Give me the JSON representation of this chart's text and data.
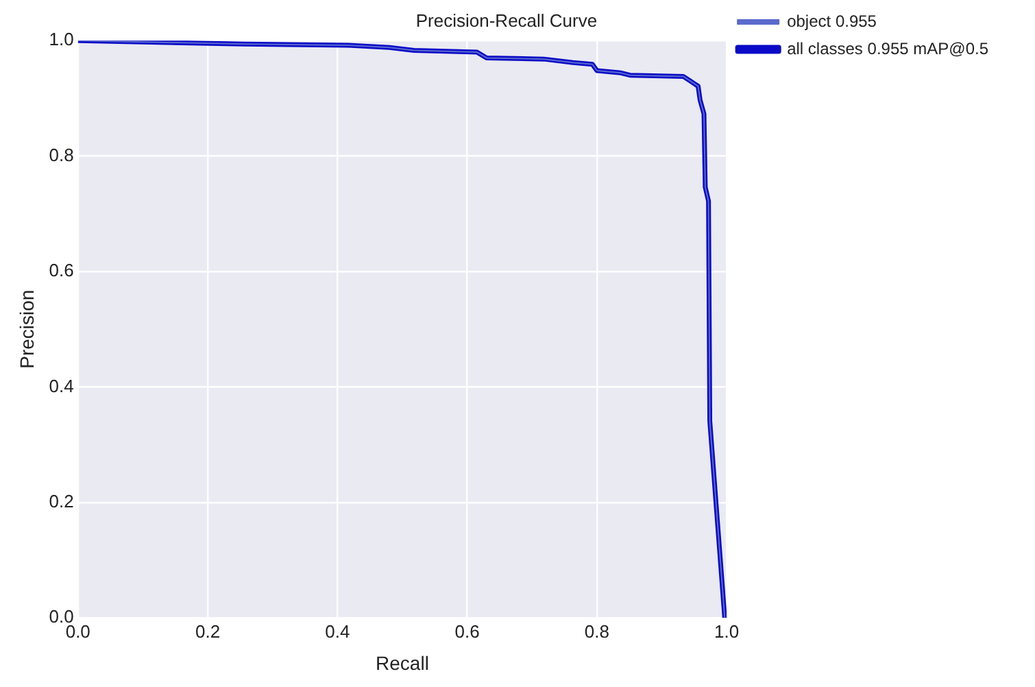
{
  "chart_data": {
    "type": "line",
    "title": "Precision-Recall Curve",
    "xlabel": "Recall",
    "ylabel": "Precision",
    "x": [
      0,
      0.256,
      0.415,
      0.48,
      0.518,
      0.615,
      0.63,
      0.718,
      0.763,
      0.793,
      0.8,
      0.837,
      0.851,
      0.933,
      0.944,
      0.956,
      0.959,
      0.965,
      0.967,
      0.972,
      0.974,
      0.997
    ],
    "series": [
      {
        "name": "object 0.955",
        "color": "#5a6acc",
        "values": [
          1.0,
          0.994,
          0.992,
          0.988,
          0.983,
          0.98,
          0.97,
          0.968,
          0.962,
          0.959,
          0.948,
          0.944,
          0.94,
          0.938,
          0.93,
          0.921,
          0.897,
          0.873,
          0.746,
          0.722,
          0.341,
          0.0
        ]
      },
      {
        "name": "all classes 0.955 mAP@0.5",
        "color": "#0a0ac8",
        "values": [
          1.0,
          0.994,
          0.992,
          0.988,
          0.983,
          0.98,
          0.97,
          0.968,
          0.962,
          0.959,
          0.948,
          0.944,
          0.94,
          0.938,
          0.93,
          0.921,
          0.897,
          0.873,
          0.746,
          0.722,
          0.341,
          0.0
        ]
      }
    ],
    "xlim": [
      0,
      1
    ],
    "ylim": [
      0,
      1
    ],
    "xticks": [
      {
        "value": 0,
        "label": "0.0"
      },
      {
        "value": 0.2,
        "label": "0.2"
      },
      {
        "value": 0.4,
        "label": "0.4"
      },
      {
        "value": 0.6,
        "label": "0.6"
      },
      {
        "value": 0.8,
        "label": "0.8"
      },
      {
        "value": 1,
        "label": "1.0"
      }
    ],
    "yticks": [
      {
        "value": 0,
        "label": "0.0"
      },
      {
        "value": 0.2,
        "label": "0.2"
      },
      {
        "value": 0.4,
        "label": "0.4"
      },
      {
        "value": 0.6,
        "label": "0.6"
      },
      {
        "value": 0.8,
        "label": "0.8"
      },
      {
        "value": 1,
        "label": "1.0"
      }
    ],
    "grid": true,
    "legend": "top right",
    "marker": "none",
    "line_style": "solid"
  }
}
